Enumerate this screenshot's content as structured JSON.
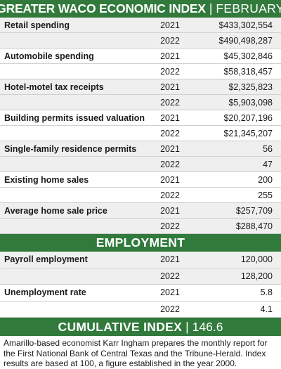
{
  "header": {
    "title": "GREATER WACO ECONOMIC INDEX",
    "separator": "|",
    "month": "FEBRUARY"
  },
  "economic_rows": [
    {
      "label": "Retail spending",
      "rows": [
        {
          "year": "2021",
          "value": "$433,302,554"
        },
        {
          "year": "2022",
          "value": "$490,498,287"
        }
      ]
    },
    {
      "label": "Automobile spending",
      "rows": [
        {
          "year": "2021",
          "value": "$45,302,846"
        },
        {
          "year": "2022",
          "value": "$58,318,457"
        }
      ]
    },
    {
      "label": "Hotel-motel tax receipts",
      "rows": [
        {
          "year": "2021",
          "value": "$2,325,823"
        },
        {
          "year": "2022",
          "value": "$5,903,098"
        }
      ]
    },
    {
      "label": "Building permits issued valuation",
      "rows": [
        {
          "year": "2021",
          "value": "$20,207,196"
        },
        {
          "year": "2022",
          "value": "$21,345,207"
        }
      ]
    },
    {
      "label": "Single-family residence permits",
      "rows": [
        {
          "year": "2021",
          "value": "56"
        },
        {
          "year": "2022",
          "value": "47"
        }
      ]
    },
    {
      "label": "Existing home sales",
      "rows": [
        {
          "year": "2021",
          "value": "200"
        },
        {
          "year": "2022",
          "value": "255"
        }
      ]
    },
    {
      "label": "Average home sale price",
      "rows": [
        {
          "year": "2021",
          "value": "$257,709"
        },
        {
          "year": "2022",
          "value": "$288,470"
        }
      ]
    }
  ],
  "employment": {
    "title": "EMPLOYMENT",
    "rows": [
      {
        "label": "Payroll employment",
        "rows": [
          {
            "year": "2021",
            "value": "120,000"
          },
          {
            "year": "2022",
            "value": "128,200"
          }
        ]
      },
      {
        "label": "Unemployment rate",
        "rows": [
          {
            "year": "2021",
            "value": "5.8"
          },
          {
            "year": "2022",
            "value": "4.1"
          }
        ]
      }
    ]
  },
  "cumulative": {
    "label": "CUMULATIVE INDEX",
    "separator": "|",
    "value": "146.6"
  },
  "footer": {
    "text": "Amarillo-based economist Karr Ingham prepares the monthly report for the First National Bank of Central Texas and the Tribune-Herald. Index results are based at 100, a figure established in the year 2000."
  },
  "colors": {
    "header_green": "#317a3c",
    "shaded_row": "#efefef"
  }
}
